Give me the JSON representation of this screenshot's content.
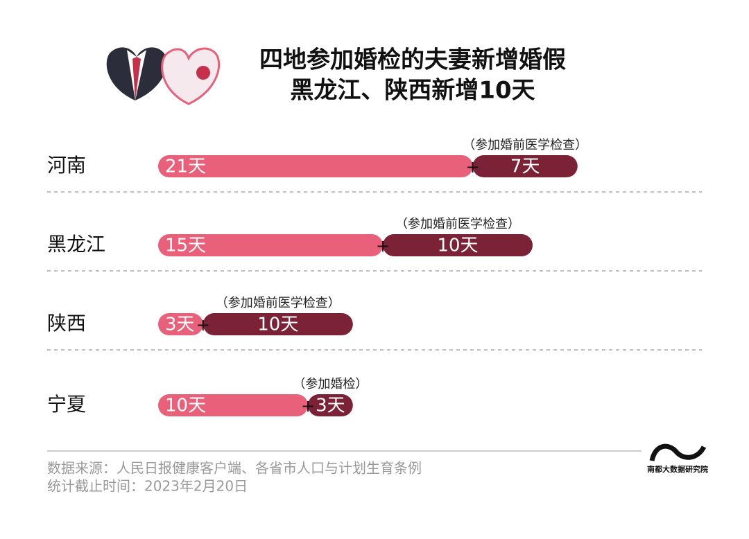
{
  "chart_data": {
    "type": "bar",
    "orientation": "horizontal",
    "stacked": true,
    "title": [
      "四地参加婚检的夫妻新增婚假",
      "黑龙江、陕西新增10天"
    ],
    "categories": [
      "河南",
      "黑龙江",
      "陕西",
      "宁夏"
    ],
    "joiner": "+",
    "series": [
      {
        "color": "#e9607a",
        "values": [
          21,
          15,
          3,
          10
        ],
        "value_labels": [
          "21天",
          "15天",
          "3天",
          "10天"
        ]
      },
      {
        "color": "#7b2236",
        "values": [
          7,
          10,
          10,
          3
        ],
        "value_labels": [
          "7天",
          "10天",
          "10天",
          "3天"
        ],
        "annotations": [
          "（参加婚前医学检查）",
          "（参加婚前医学检查）",
          "（参加婚前医学检查）",
          "（参加婚检）"
        ]
      }
    ],
    "source": [
      "数据来源：人民日报健康客户端、各省市人口与计划生育条例",
      "统计截止时间：2023年2月20日"
    ],
    "logo": "南都大数据研究院"
  }
}
